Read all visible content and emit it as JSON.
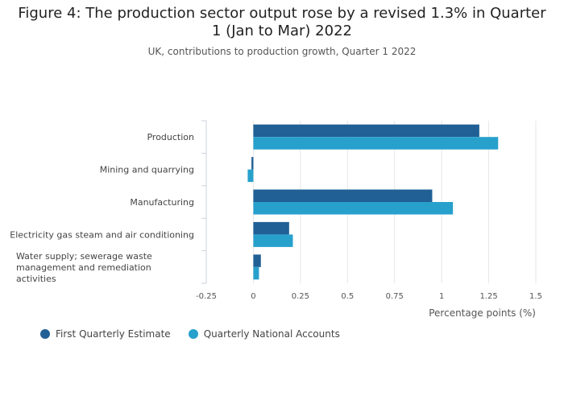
{
  "chart_data": {
    "type": "bar",
    "orientation": "horizontal",
    "title": "Figure 4: The production sector output rose by a revised 1.3% in Quarter 1 (Jan to Mar) 2022",
    "subtitle": "UK, contributions to production growth, Quarter 1 2022",
    "categories": [
      "Production",
      "Mining and quarrying",
      "Manufacturing",
      "Electricity gas steam and air conditioning",
      "Water supply; sewerage waste management and remediation activities"
    ],
    "series": [
      {
        "name": "First Quarterly Estimate",
        "color": "#206095",
        "values": [
          1.2,
          -0.01,
          0.95,
          0.19,
          0.04
        ]
      },
      {
        "name": "Quarterly National Accounts",
        "color": "#27a0cc",
        "values": [
          1.3,
          -0.03,
          1.06,
          0.21,
          0.03
        ]
      }
    ],
    "xlabel": "Percentage points (%)",
    "ylabel": "",
    "xlim": [
      -0.25,
      1.5
    ],
    "xticks": [
      -0.25,
      0,
      0.25,
      0.5,
      0.75,
      1,
      1.25,
      1.5
    ],
    "xtick_labels": [
      "-0.25",
      "0",
      "0.25",
      "0.5",
      "0.75",
      "1",
      "1.25",
      "1.5"
    ],
    "grid": true,
    "legend_position": "bottom-left"
  }
}
